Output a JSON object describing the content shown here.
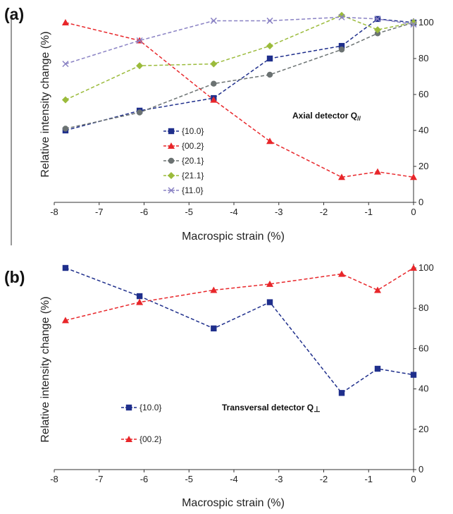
{
  "panel_labels": [
    "(a)",
    "(b)"
  ],
  "chart_data": [
    {
      "type": "line",
      "panel": "(a)",
      "xlabel": "Macrospic strain (%)",
      "ylabel": "Relative intensity change (%)",
      "xlim": [
        -8,
        0
      ],
      "ylim": [
        0,
        100
      ],
      "x_ticks": [
        -8,
        -7,
        -6,
        -5,
        -4,
        -3,
        -2,
        -1,
        0
      ],
      "y_ticks": [
        0,
        20,
        40,
        60,
        80,
        100
      ],
      "y_axis_side": "right",
      "annotation": {
        "main": "Axial detector Q",
        "sub": "//"
      },
      "legend_position": "lower-left",
      "series": [
        {
          "name": "{10.0}",
          "color": "#1f2f8c",
          "marker": "square",
          "x": [
            -7.75,
            -6.1,
            -4.45,
            -3.2,
            -1.6,
            -0.8,
            0
          ],
          "y": [
            40,
            51,
            58,
            80,
            87,
            102,
            100
          ]
        },
        {
          "name": "{00.2}",
          "color": "#e8262a",
          "marker": "triangle",
          "x": [
            -7.75,
            -6.1,
            -4.45,
            -3.2,
            -1.6,
            -0.8,
            0
          ],
          "y": [
            100,
            90,
            57,
            34,
            14,
            17,
            14
          ]
        },
        {
          "name": "{20.1}",
          "color": "#6b7272",
          "marker": "circle",
          "x": [
            -7.75,
            -6.1,
            -4.45,
            -3.2,
            -1.6,
            -0.8,
            0
          ],
          "y": [
            41,
            50,
            66,
            71,
            85,
            94,
            100
          ]
        },
        {
          "name": "{21.1}",
          "color": "#9bbb3b",
          "marker": "diamond",
          "x": [
            -7.75,
            -6.1,
            -4.45,
            -3.2,
            -1.6,
            -0.8,
            0
          ],
          "y": [
            57,
            76,
            77,
            87,
            104,
            96,
            100
          ]
        },
        {
          "name": "{11.0}",
          "color": "#8a82c4",
          "marker": "cross",
          "x": [
            -7.75,
            -6.1,
            -4.45,
            -3.2,
            -1.6,
            -0.8,
            0
          ],
          "y": [
            77,
            90,
            101,
            101,
            103,
            102,
            99
          ]
        }
      ]
    },
    {
      "type": "line",
      "panel": "(b)",
      "xlabel": "Macrospic strain (%)",
      "ylabel": "Relative intensity change (%)",
      "xlim": [
        -8,
        0
      ],
      "ylim": [
        0,
        100
      ],
      "x_ticks": [
        -8,
        -7,
        -6,
        -5,
        -4,
        -3,
        -2,
        -1,
        0
      ],
      "y_ticks": [
        0,
        20,
        40,
        60,
        80,
        100
      ],
      "y_axis_side": "right",
      "annotation": {
        "main": "Transversal detector Q",
        "sub": "⊥"
      },
      "legend_position": "left",
      "series": [
        {
          "name": "{10.0}",
          "color": "#1f2f8c",
          "marker": "square",
          "x": [
            -7.75,
            -6.1,
            -4.45,
            -3.2,
            -1.6,
            -0.8,
            0
          ],
          "y": [
            100,
            86,
            70,
            83,
            38,
            50,
            47
          ]
        },
        {
          "name": "{00.2}",
          "color": "#e8262a",
          "marker": "triangle",
          "x": [
            -7.75,
            -6.1,
            -4.45,
            -3.2,
            -1.6,
            -0.8,
            0
          ],
          "y": [
            74,
            83,
            89,
            92,
            97,
            89,
            100
          ]
        }
      ]
    }
  ]
}
